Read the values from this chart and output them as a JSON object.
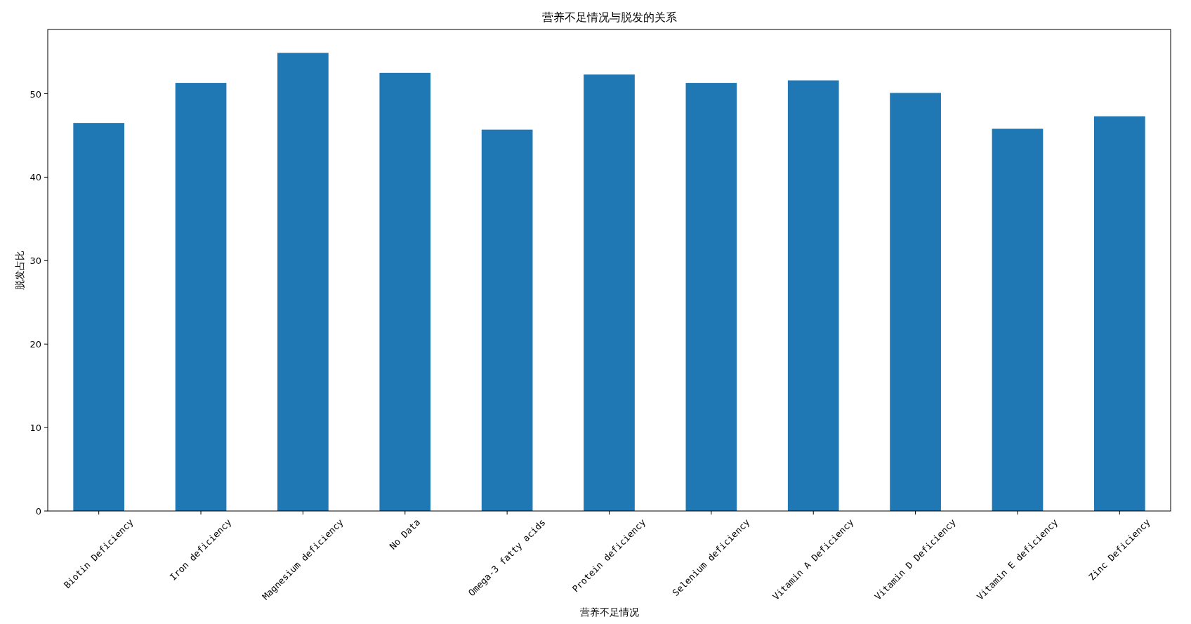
{
  "chart_data": {
    "type": "bar",
    "title": "营养不足情况与脱发的关系",
    "xlabel": "营养不足情况",
    "ylabel": "脱发占比",
    "categories": [
      "Biotin Deficiency",
      "Iron deficiency",
      "Magnesium deficiency",
      "No Data",
      "Omega-3 fatty acids",
      "Protein deficiency",
      "Selenium deficiency",
      "Vitamin A Deficiency",
      "Vitamin D Deficiency",
      "Vitamin E deficiency",
      "Zinc Deficiency"
    ],
    "values": [
      46.5,
      51.3,
      54.9,
      52.5,
      45.7,
      52.3,
      51.3,
      51.6,
      50.1,
      45.8,
      47.3
    ],
    "color": "#1f77b4",
    "ylim": [
      0,
      57.7
    ],
    "yticks": [
      0,
      10,
      20,
      30,
      40,
      50
    ],
    "grid": false
  }
}
